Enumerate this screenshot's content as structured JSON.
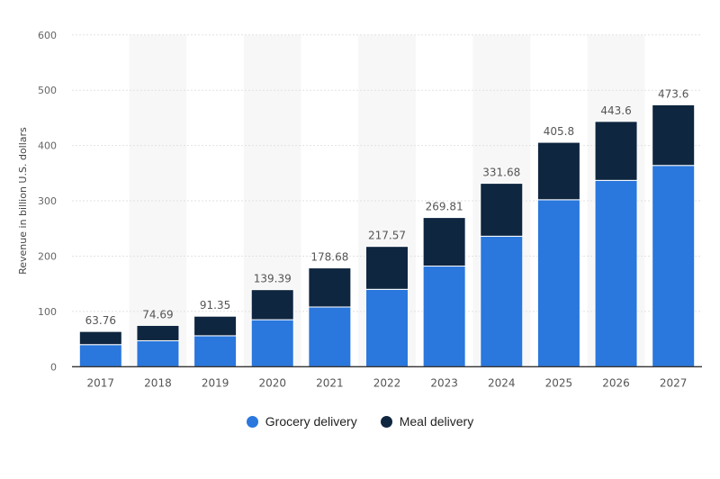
{
  "chart_data": {
    "type": "bar",
    "stacked": true,
    "categories": [
      "2017",
      "2018",
      "2019",
      "2020",
      "2021",
      "2022",
      "2023",
      "2024",
      "2025",
      "2026",
      "2027"
    ],
    "series": [
      {
        "name": "Grocery delivery",
        "color": "#2a77dd",
        "values": [
          40,
          47,
          56,
          85,
          108,
          140,
          182,
          236,
          302,
          337,
          364
        ]
      },
      {
        "name": "Meal delivery",
        "color": "#0f2640",
        "values": [
          23.76,
          27.69,
          35.35,
          54.39,
          70.68,
          77.57,
          87.81,
          95.68,
          103.8,
          106.6,
          109.6
        ]
      }
    ],
    "totals": [
      "63.76",
      "74.69",
      "91.35",
      "139.39",
      "178.68",
      "217.57",
      "269.81",
      "331.68",
      "405.8",
      "443.6",
      "473.6"
    ],
    "ylabel": "Revenue in billion U.S. dollars",
    "xlabel": "",
    "ylim": [
      0,
      600
    ],
    "yticks": [
      0,
      100,
      200,
      300,
      400,
      500,
      600
    ],
    "grid": true,
    "legend": "bottom"
  }
}
